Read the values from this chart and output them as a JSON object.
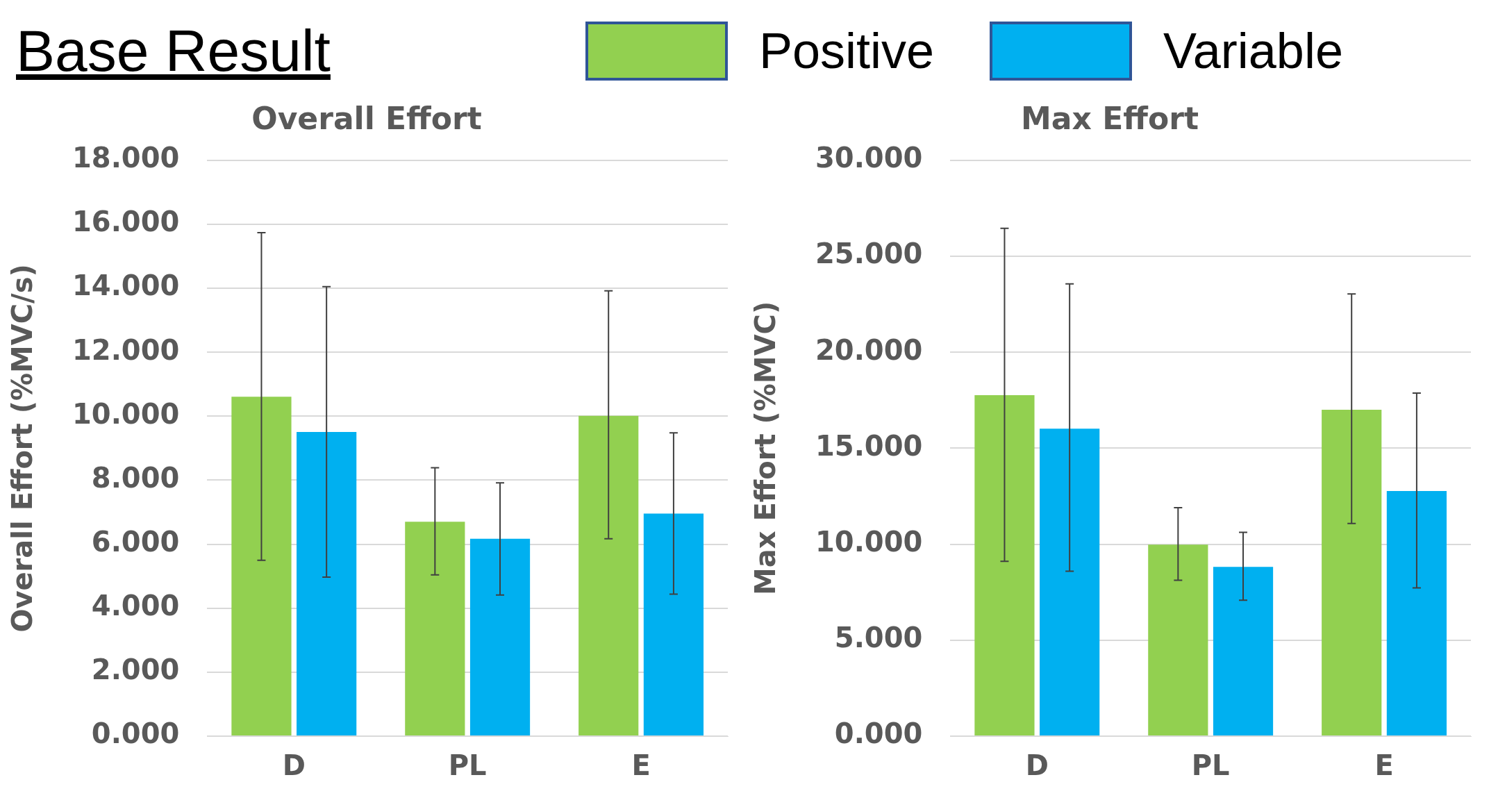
{
  "chart_data": [
    {
      "type": "bar",
      "title": "Overall Effort",
      "ylabel": "Overall Effort (%MVC/s)",
      "annotations": [
        "Base Result"
      ],
      "categories": [
        "D",
        "PL",
        "E"
      ],
      "legend": "top",
      "grid": "y",
      "ylim": [
        0,
        18
      ],
      "yticks": [
        {
          "value": 0,
          "label": "0.000"
        },
        {
          "value": 2,
          "label": "2.000"
        },
        {
          "value": 4,
          "label": "4.000"
        },
        {
          "value": 6,
          "label": "6.000"
        },
        {
          "value": 8,
          "label": "8.000"
        },
        {
          "value": 10,
          "label": "10.000"
        },
        {
          "value": 12,
          "label": "12.000"
        },
        {
          "value": 14,
          "label": "14.000"
        },
        {
          "value": 16,
          "label": "16.000"
        },
        {
          "value": 18,
          "label": "18.000"
        }
      ],
      "series": [
        {
          "name": "Positive",
          "color": "#92d050",
          "values": [
            10.61,
            6.7,
            10.01
          ],
          "errors": [
            [
              5.5,
              15.74
            ],
            [
              5.04,
              8.39
            ],
            [
              6.17,
              13.92
            ]
          ]
        },
        {
          "name": "Variable",
          "color": "#00b0f0",
          "values": [
            9.51,
            6.17,
            6.96
          ],
          "errors": [
            [
              4.97,
              14.05
            ],
            [
              4.41,
              7.92
            ],
            [
              4.44,
              9.48
            ]
          ]
        }
      ]
    },
    {
      "type": "bar",
      "title": "Max Effort",
      "ylabel": "Max Effort (%MVC)",
      "categories": [
        "D",
        "PL",
        "E"
      ],
      "grid": "y",
      "ylim": [
        0,
        30
      ],
      "yticks": [
        {
          "value": 0,
          "label": "0.000"
        },
        {
          "value": 5,
          "label": "5.000"
        },
        {
          "value": 10,
          "label": "10.000"
        },
        {
          "value": 15,
          "label": "15.000"
        },
        {
          "value": 20,
          "label": "20.000"
        },
        {
          "value": 25,
          "label": "25.000"
        },
        {
          "value": 30,
          "label": "30.000"
        }
      ],
      "series": [
        {
          "color": "#92d050",
          "values": [
            17.76,
            9.98,
            17.0
          ],
          "errors": [
            [
              9.11,
              26.46
            ],
            [
              8.12,
              11.9
            ],
            [
              11.08,
              23.04
            ]
          ]
        },
        {
          "color": "#00b0f0",
          "values": [
            16.02,
            8.82,
            12.77
          ],
          "errors": [
            [
              8.59,
              23.56
            ],
            [
              7.08,
              10.62
            ],
            [
              7.72,
              17.87
            ]
          ]
        }
      ]
    }
  ]
}
